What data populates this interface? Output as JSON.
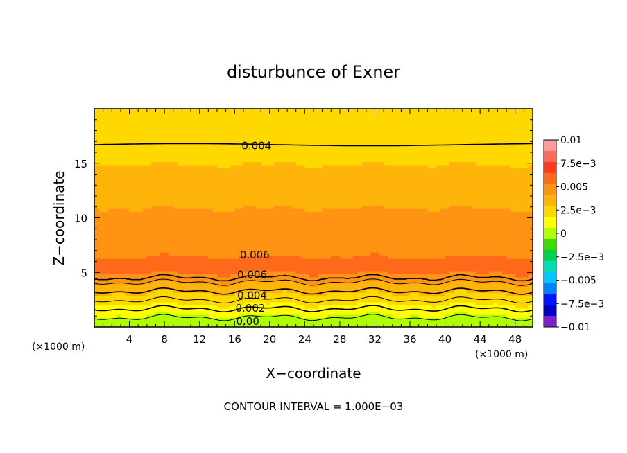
{
  "chart_data": {
    "type": "contour",
    "title": "disturbunce of Exner",
    "xlabel": "X−coordinate",
    "ylabel": "Z−coordinate",
    "x_unit": "(×1000 m)",
    "y_unit": "(×1000 m)",
    "xlim": [
      0,
      50
    ],
    "ylim": [
      0,
      20
    ],
    "xticks": [
      4,
      8,
      12,
      16,
      20,
      24,
      28,
      32,
      36,
      40,
      44,
      48
    ],
    "yticks": [
      5,
      10,
      15
    ],
    "colorbar": {
      "range": [
        -0.01,
        0.01
      ],
      "tick_labels": [
        "0.01",
        "7.5e−3",
        "0.005",
        "2.5e−3",
        "0",
        "−2.5e−3",
        "−0.005",
        "−7.5e−3",
        "−0.01"
      ],
      "tick_values": [
        0.01,
        0.0075,
        0.005,
        0.0025,
        0,
        -0.0025,
        -0.005,
        -0.0075,
        -0.01
      ],
      "colors": [
        "#ff9a9a",
        "#ff6a5a",
        "#ff3a1e",
        "#ff6a1a",
        "#ff9414",
        "#ffb40a",
        "#ffd800",
        "#ffff00",
        "#b0ff00",
        "#3cdc00",
        "#00d24a",
        "#00dcb4",
        "#00c8ff",
        "#0082ff",
        "#0014ff",
        "#0000c8",
        "#8020c8"
      ]
    },
    "contour_labels": [
      {
        "text": "0.004",
        "x": 18.5,
        "z": 16.6
      },
      {
        "text": "0.006",
        "x": 18.3,
        "z": 6.6
      },
      {
        "text": "0.006",
        "x": 18.0,
        "z": 4.8
      },
      {
        "text": "0.004",
        "x": 18.0,
        "z": 2.9
      },
      {
        "text": "0.002",
        "x": 17.8,
        "z": 1.7
      },
      {
        "text": "0.00",
        "x": 17.5,
        "z": 0.5
      }
    ],
    "contour_interval": "CONTOUR INTERVAL = 1.000E−03"
  }
}
